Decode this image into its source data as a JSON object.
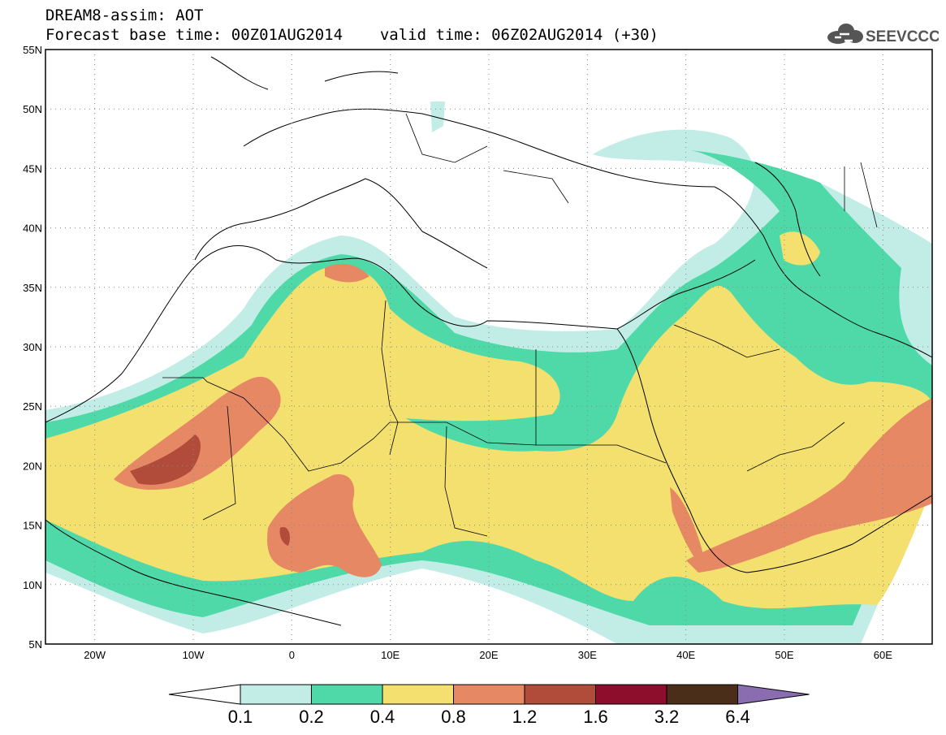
{
  "title": {
    "line1": "DREAM8-assim: AOT",
    "base_time": "Forecast base time: 00Z01AUG2014",
    "valid_time": "valid time: 06Z02AUG2014 (+30)"
  },
  "logo_text": "SEEVCCC",
  "map": {
    "lon_range": [
      -25,
      65
    ],
    "lat_range": [
      5,
      55
    ],
    "lat_labels": [
      "55N",
      "50N",
      "45N",
      "40N",
      "35N",
      "30N",
      "25N",
      "20N",
      "15N",
      "10N",
      "5N"
    ],
    "lon_labels": [
      "20W",
      "10W",
      "0",
      "10E",
      "20E",
      "30E",
      "40E",
      "50E",
      "60E"
    ],
    "gridlines": "dotted"
  },
  "colorbar": {
    "labels": [
      "0.1",
      "0.2",
      "0.4",
      "0.8",
      "1.2",
      "1.6",
      "3.2",
      "6.4"
    ],
    "colors": [
      "#ffffff",
      "#c2ede6",
      "#4fd9a9",
      "#f3e06e",
      "#e58863",
      "#b14b3a",
      "#8c0d2c",
      "#4a2e1a",
      "#8a6db0"
    ]
  }
}
